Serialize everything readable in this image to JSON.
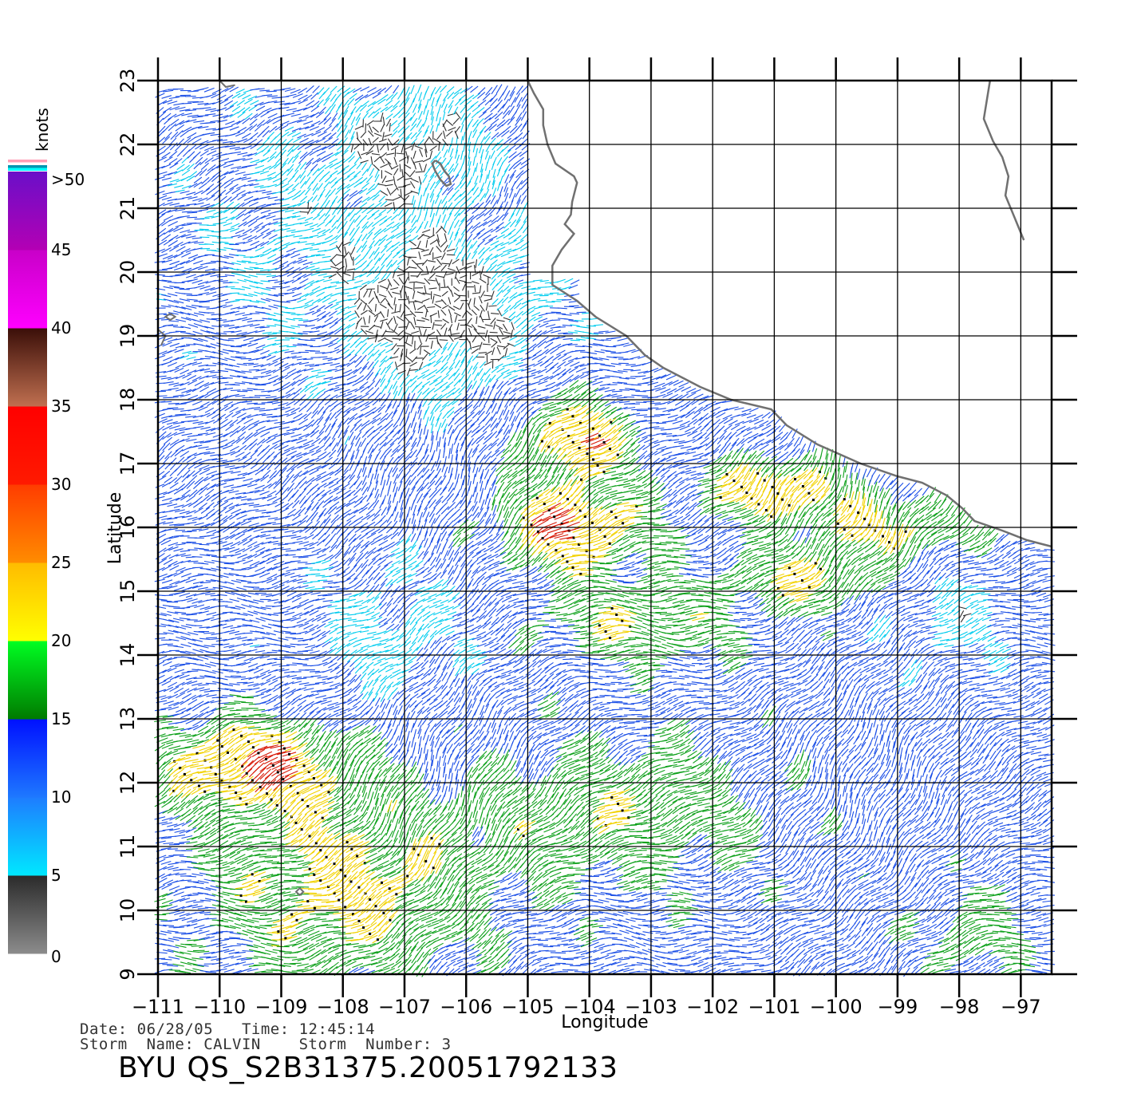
{
  "map": {
    "xlabel": "Longitude",
    "ylabel": "Latitude",
    "lon_range": [
      -111,
      -96.5
    ],
    "lat_range": [
      9,
      23
    ],
    "lon_ticks": [
      -111,
      -110,
      -109,
      -108,
      -107,
      -106,
      -105,
      -104,
      -103,
      -102,
      -101,
      -100,
      -99,
      -98,
      -97
    ],
    "lon_tick_labels": [
      "−111",
      "−110",
      "−109",
      "−108",
      "−107",
      "−106",
      "−105",
      "−104",
      "−103",
      "−102",
      "−101",
      "−100",
      "−99",
      "−98",
      "−97"
    ],
    "lat_ticks": [
      9,
      10,
      11,
      12,
      13,
      14,
      15,
      16,
      17,
      18,
      19,
      20,
      21,
      22,
      23
    ],
    "lat_tick_labels": [
      "9",
      "10",
      "11",
      "12",
      "13",
      "14",
      "15",
      "16",
      "17",
      "18",
      "19",
      "20",
      "21",
      "22",
      "23"
    ],
    "grid": true,
    "coastline_color": "#707070"
  },
  "colorbar": {
    "title": "knots",
    "labels": [
      "0",
      "5",
      "10",
      "15",
      "20",
      "25",
      "30",
      "35",
      "40",
      "45",
      ">50"
    ],
    "label_values": [
      0,
      5,
      10,
      15,
      20,
      25,
      30,
      35,
      40,
      45,
      50
    ],
    "bands": [
      {
        "from": 0,
        "to": 5,
        "colors": [
          "#8c8c8c",
          "#2a2a2a"
        ]
      },
      {
        "from": 5,
        "to": 10,
        "colors": [
          "#00e8ff",
          "#1e7cff"
        ]
      },
      {
        "from": 10,
        "to": 15,
        "colors": [
          "#1e78ff",
          "#0010ff"
        ]
      },
      {
        "from": 15,
        "to": 20,
        "colors": [
          "#007a00",
          "#00ff22"
        ]
      },
      {
        "from": 20,
        "to": 25,
        "colors": [
          "#ffff00",
          "#ffbb00"
        ]
      },
      {
        "from": 25,
        "to": 30,
        "colors": [
          "#ff8c00",
          "#ff3c00"
        ]
      },
      {
        "from": 30,
        "to": 35,
        "colors": [
          "#ff1a00",
          "#ff0000"
        ]
      },
      {
        "from": 35,
        "to": 40,
        "colors": [
          "#c07050",
          "#3a0e08"
        ]
      },
      {
        "from": 40,
        "to": 45,
        "colors": [
          "#ff00ff",
          "#c800c8"
        ]
      },
      {
        "from": 45,
        "to": 50,
        "colors": [
          "#b400b4",
          "#6a0fc8"
        ]
      }
    ],
    "cap_colors": [
      "#ff9eb5",
      "#ffffff",
      "#0095b0",
      "#00ffff"
    ]
  },
  "wind_colors": {
    "calm": "#303030",
    "light": "#00ccee",
    "moderate": "#1a4ee6",
    "fresh": "#0da01a",
    "strong": "#f2d200",
    "gale": "#d81a08",
    "storm": "#6a0fb8"
  },
  "footer": {
    "date_line": "Date: 06/28/05   Time: 12:45:14",
    "storm_line": "Storm  Name: CALVIN    Storm  Number: 3",
    "product_id": "BYU  QS_S2B31375.20051792133"
  }
}
